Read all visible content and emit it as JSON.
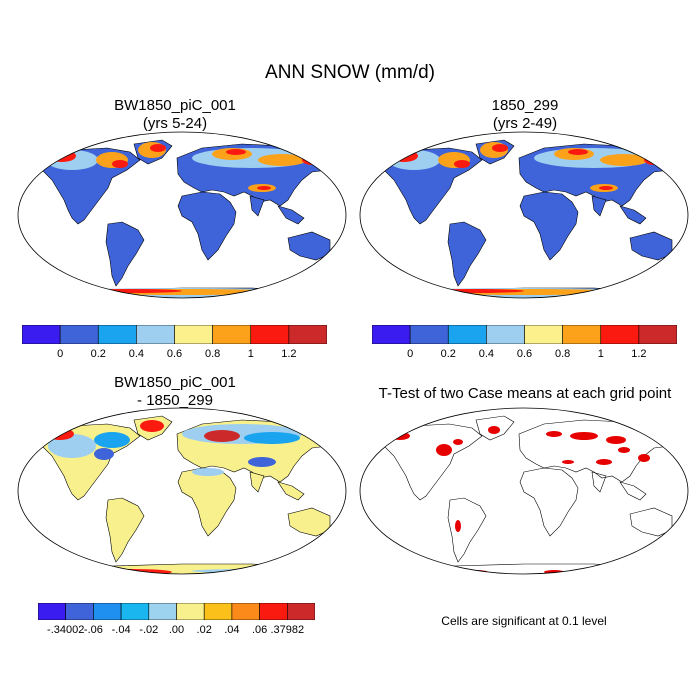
{
  "title": "ANN SNOW (mm/d)",
  "panels": [
    {
      "id": "p1",
      "title_line1": "BW1850_piC_001",
      "title_line2": "(yrs 5-24)"
    },
    {
      "id": "p2",
      "title_line1": "1850_299",
      "title_line2": "(yrs 2-49)"
    },
    {
      "id": "p3",
      "title_line1": "BW1850_piC_001",
      "title_line2": "- 1850_299"
    },
    {
      "id": "p4",
      "title_line1": "T-Test of two Case means at each grid point",
      "title_line2": ""
    }
  ],
  "colorbar_abs": {
    "colors": [
      "#3b1cf0",
      "#3f63d8",
      "#1aa4f0",
      "#9ecff0",
      "#fbf08c",
      "#fba21a",
      "#fb1a10",
      "#cc2a2a"
    ],
    "labels": [
      "0",
      "0.2",
      "0.4",
      "0.6",
      "0.8",
      "1",
      "1.2"
    ]
  },
  "colorbar_diff": {
    "colors": [
      "#3b1cf0",
      "#3f63d8",
      "#1f8ff0",
      "#1ab6f0",
      "#9ed3f0",
      "#f7f08c",
      "#fbc01a",
      "#fb8a1a",
      "#fb1a10",
      "#cc2a2a"
    ],
    "labels": [
      "-.34002",
      "-.06",
      "-.04",
      "-.02",
      ".00",
      ".02",
      ".04",
      ".06",
      ".37982"
    ]
  },
  "note": "Cells are significant at 0.1 level",
  "colors": {
    "land_abs": "#3f63d8",
    "land_diff": "#f7f08c",
    "sig": "#e60000",
    "hot": "#fb1a10",
    "warm": "#fba21a",
    "light": "#9ecff0",
    "cyan": "#1aa4f0",
    "yellow": "#fbf08c"
  }
}
